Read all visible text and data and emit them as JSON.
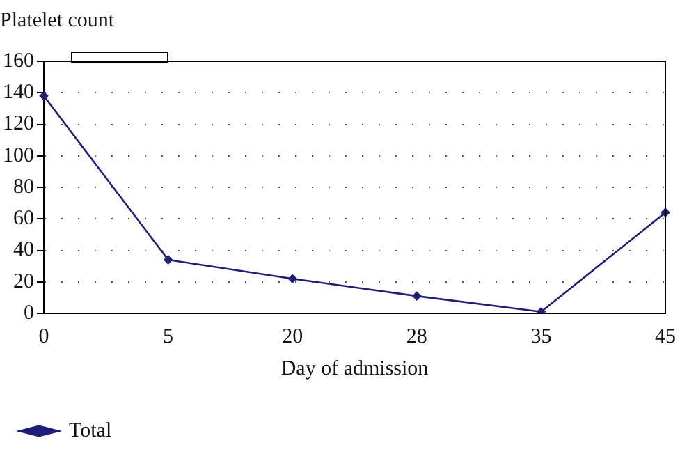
{
  "chart_data": {
    "type": "line",
    "title": "Platelet count",
    "xlabel": "Day of admission",
    "categories": [
      "0",
      "5",
      "20",
      "28",
      "35",
      "45"
    ],
    "series": [
      {
        "name": "Total",
        "color": "#1f1f7a",
        "values": [
          138,
          34,
          22,
          11,
          1,
          64
        ]
      }
    ],
    "ylim": [
      0,
      160
    ],
    "yticks": [
      0,
      20,
      40,
      60,
      80,
      100,
      120,
      140,
      160
    ],
    "grid": "y",
    "legend": "bottom left",
    "marker": "diamond",
    "line_style": "solid"
  }
}
